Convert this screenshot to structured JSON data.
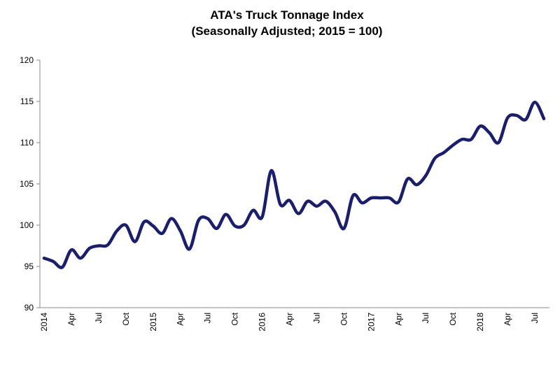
{
  "chart_data": {
    "type": "line",
    "title": "ATA's Truck Tonnage Index",
    "subtitle": "(Seasonally Adjusted; 2015 = 100)",
    "categories": [
      "2014",
      null,
      null,
      "Apr",
      null,
      null,
      "Jul",
      null,
      null,
      "Oct",
      null,
      null,
      "2015",
      null,
      null,
      "Apr",
      null,
      null,
      "Jul",
      null,
      null,
      "Oct",
      null,
      null,
      "2016",
      null,
      null,
      "Apr",
      null,
      null,
      "Jul",
      null,
      null,
      "Oct",
      null,
      null,
      "2017",
      null,
      null,
      "Apr",
      null,
      null,
      "Jul",
      null,
      null,
      "Oct",
      null,
      null,
      "2018",
      null,
      null,
      "Apr",
      null,
      null,
      "Jul",
      null
    ],
    "series": [
      {
        "name": "Truck Tonnage Index",
        "color": "#1b1f6b",
        "values": [
          96.0,
          95.6,
          94.9,
          97.0,
          96.0,
          97.2,
          97.5,
          97.6,
          99.3,
          100.0,
          98.0,
          100.4,
          99.9,
          99.0,
          100.8,
          99.3,
          97.1,
          100.6,
          100.8,
          99.6,
          101.3,
          99.9,
          100.0,
          101.8,
          101.0,
          106.6,
          102.5,
          103.0,
          101.4,
          102.9,
          102.3,
          102.9,
          101.6,
          99.6,
          103.6,
          102.7,
          103.3,
          103.3,
          103.3,
          102.8,
          105.6,
          104.9,
          106.0,
          108.1,
          108.8,
          109.7,
          110.4,
          110.4,
          112.0,
          111.2,
          110.0,
          113.0,
          113.3,
          112.8,
          114.9,
          112.9
        ]
      }
    ],
    "ylim": [
      90,
      120
    ],
    "yticks": [
      90,
      95,
      100,
      105,
      110,
      115,
      120
    ],
    "grid": false
  }
}
